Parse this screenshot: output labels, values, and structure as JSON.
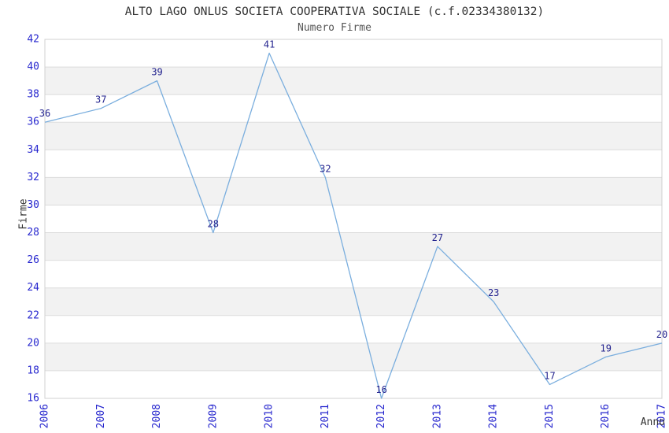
{
  "chart_data": {
    "type": "line",
    "title": "ALTO LAGO ONLUS SOCIETA COOPERATIVA SOCIALE (c.f.02334380132)",
    "subtitle": "Numero Firme",
    "xlabel": "Anno",
    "ylabel": "Firme",
    "x": [
      2006,
      2007,
      2008,
      2009,
      2010,
      2011,
      2012,
      2013,
      2014,
      2015,
      2016,
      2017
    ],
    "values": [
      36,
      37,
      39,
      28,
      41,
      32,
      16,
      27,
      23,
      17,
      19,
      20
    ],
    "ylim": [
      16,
      42
    ],
    "ytick_step": 2,
    "grid": "alternating horizontal bands, gridline at every y tick",
    "legend": "none",
    "data_labels": "value shown above each point",
    "colors": {
      "line": "#7AAEDE",
      "tick_label": "#2626CE",
      "data_label": "#22228E",
      "title": "#333333",
      "subtitle": "#555555",
      "band": "#F2F2F2",
      "gridline": "#DCDCDC",
      "plot_border": "#D0D0D0",
      "axis_title": "#333333",
      "background": "#FFFFFF"
    }
  }
}
